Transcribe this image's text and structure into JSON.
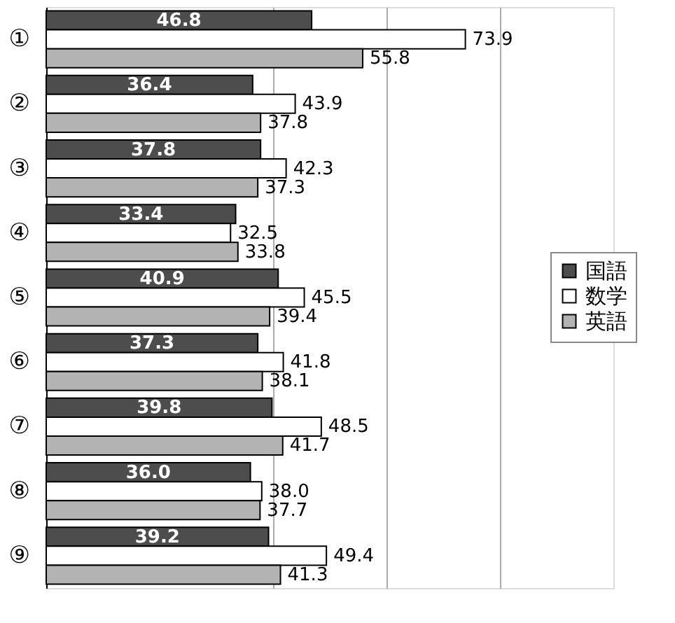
{
  "chart_data": {
    "type": "bar",
    "orientation": "horizontal",
    "categories": [
      "①",
      "②",
      "③",
      "④",
      "⑤",
      "⑥",
      "⑦",
      "⑧",
      "⑨"
    ],
    "series": [
      {
        "name": "国語",
        "color": "#4d4d4d",
        "values": [
          46.8,
          36.4,
          37.8,
          33.4,
          40.9,
          37.3,
          39.8,
          36.0,
          39.2
        ],
        "value_labels": [
          "46.8",
          "36.4",
          "37.8",
          "33.4",
          "40.9",
          "37.3",
          "39.8",
          "36.0",
          "39.2"
        ]
      },
      {
        "name": "数学",
        "color": "#ffffff",
        "values": [
          73.9,
          43.9,
          42.3,
          32.5,
          45.5,
          41.8,
          48.5,
          38.0,
          49.4
        ],
        "value_labels": [
          "73.9",
          "43.9",
          "42.3",
          "32.5",
          "45.5",
          "41.8",
          "48.5",
          "38.0",
          "49.4"
        ]
      },
      {
        "name": "英語",
        "color": "#b3b3b3",
        "values": [
          55.8,
          37.8,
          37.3,
          33.8,
          39.4,
          38.1,
          41.7,
          37.7,
          41.3
        ],
        "value_labels": [
          "55.8",
          "37.8",
          "37.3",
          "33.8",
          "39.4",
          "38.1",
          "41.7",
          "37.7",
          "41.3"
        ]
      }
    ],
    "xlim": [
      0,
      100
    ],
    "xticks": [
      {
        "value": 40,
        "label": null
      },
      {
        "value": 60,
        "label": null
      },
      {
        "value": 80,
        "label": null
      }
    ],
    "tick_labels": "y",
    "grid": "x",
    "legend": "right"
  }
}
